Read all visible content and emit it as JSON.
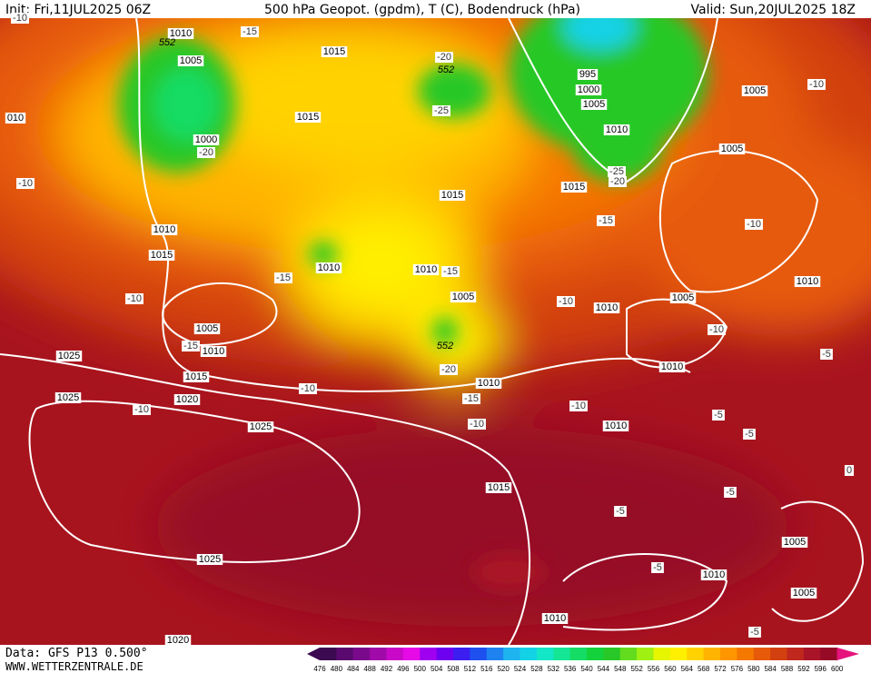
{
  "header": {
    "init": "Init: Fri,11JUL2025 06Z",
    "title": "500 hPa Geopot. (gpdm), T (C), Bodendruck (hPa)",
    "valid": "Valid: Sun,20JUL2025 18Z"
  },
  "footer": {
    "data": "Data: GFS P13 0.500°",
    "site": "WWW.WETTERZENTRALE.DE"
  },
  "map": {
    "isobar_labels": [
      "1010",
      "1005",
      "1000",
      "010",
      "1015",
      "1015",
      "1010",
      "1015",
      "1005",
      "1010",
      "1015",
      "1020",
      "1025",
      "1025",
      "1025",
      "1025",
      "1020",
      "1010",
      "1010",
      "1015",
      "1005",
      "1010",
      "1015",
      "1010",
      "995",
      "1000",
      "1005",
      "1010",
      "1015",
      "1010",
      "1005",
      "1010",
      "1010",
      "1005",
      "1005",
      "1010",
      "1005",
      "1010",
      "1005"
    ],
    "temperature_labels": [
      "-10",
      "-15",
      "-20",
      "-25",
      "-20",
      "-10",
      "-10",
      "-15",
      "-15",
      "-20",
      "-15",
      "-15",
      "-10",
      "-15",
      "-10",
      "-25",
      "-20",
      "-10",
      "-10",
      "-10",
      "-10",
      "-5",
      "-5",
      "-5",
      "-10",
      "-10",
      "-5",
      "-5",
      "0",
      "-5",
      "-5"
    ],
    "geopotential_labels": [
      "552",
      "552",
      "552"
    ]
  },
  "legend": {
    "labels": [
      476,
      480,
      484,
      488,
      492,
      496,
      500,
      504,
      508,
      512,
      516,
      520,
      524,
      528,
      532,
      536,
      540,
      544,
      548,
      552,
      556,
      560,
      564,
      568,
      572,
      576,
      580,
      584,
      588,
      592,
      596,
      600
    ],
    "colors": [
      "#3c0a50",
      "#5a0a6e",
      "#7a0a8c",
      "#a00aa8",
      "#c80ac8",
      "#e60ae6",
      "#a000f0",
      "#6e00f0",
      "#3c1ef0",
      "#1e50f0",
      "#1e82f0",
      "#1eb4f0",
      "#14d2e6",
      "#14e6c8",
      "#14e696",
      "#14dc64",
      "#14d23c",
      "#28c828",
      "#64dc1e",
      "#a0f014",
      "#e6f500",
      "#fff000",
      "#ffd200",
      "#ffb400",
      "#ff9600",
      "#f57800",
      "#e65a0a",
      "#d2400f",
      "#c0281e",
      "#aa1428",
      "#960a28",
      "#e6147d"
    ]
  }
}
